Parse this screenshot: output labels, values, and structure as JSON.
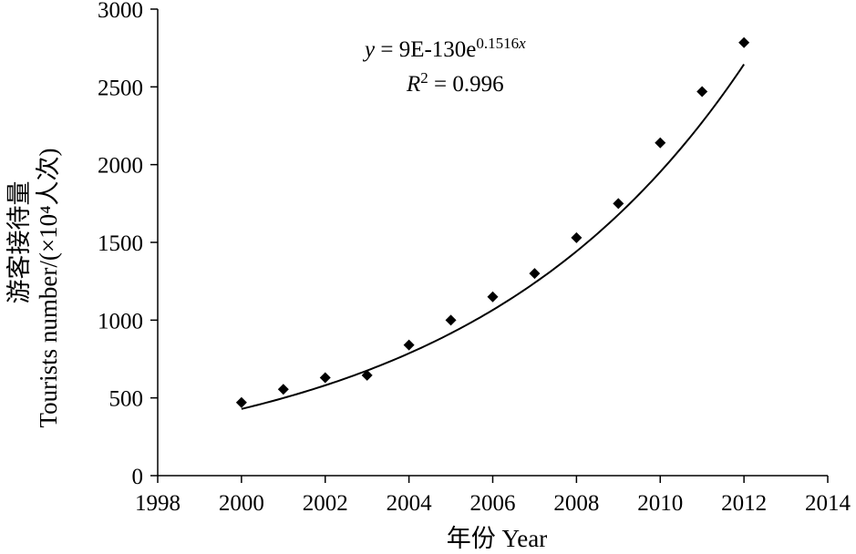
{
  "chart_data": {
    "type": "scatter",
    "x": [
      2000,
      2001,
      2002,
      2003,
      2004,
      2005,
      2006,
      2007,
      2008,
      2009,
      2010,
      2011,
      2012
    ],
    "series": [
      {
        "values": [
          470,
          555,
          630,
          645,
          840,
          1000,
          1150,
          1300,
          1530,
          1750,
          2140,
          2470,
          2785
        ],
        "marker": "diamond"
      }
    ],
    "trendline": {
      "type": "exponential",
      "a": 9e-130,
      "b": 0.1516,
      "x_range": [
        2000,
        2012
      ]
    },
    "xlim": [
      1998,
      2014
    ],
    "ylim": [
      0,
      3000
    ],
    "x_ticks": [
      "1998",
      "2000",
      "2002",
      "2004",
      "2006",
      "2008",
      "2010",
      "2012",
      "2014"
    ],
    "y_ticks": [
      "0",
      "500",
      "1000",
      "1500",
      "2000",
      "2500",
      "3000"
    ],
    "xlabel": "年份 Year",
    "ylabel_line1": "游客接待量",
    "ylabel_line2": "Tourists number/(×10⁴人次)",
    "equation": {
      "y_var": "y",
      "eq_body": " = 9E-130e",
      "exponent": "0.1516",
      "exp_var": "x",
      "r_var": "R",
      "r_sup": "2",
      "r_value": " = 0.996"
    },
    "grid": false,
    "legend": "none",
    "colors": {
      "marker": "#000000",
      "line": "#000000",
      "axis": "#000000"
    }
  }
}
